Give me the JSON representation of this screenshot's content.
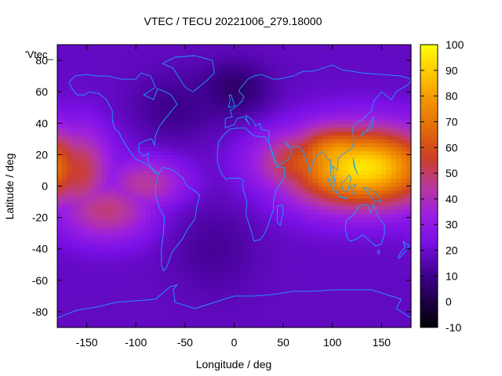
{
  "chart_data": {
    "type": "heatmap",
    "title": "VTEC / TECU 20221006_279.18000",
    "xlabel": "Longitude / deg",
    "ylabel": "Latitude / deg",
    "key_label": "'Vtec_",
    "xlim": [
      -180,
      180
    ],
    "ylim": [
      -90,
      90
    ],
    "x_ticks": [
      -150,
      -100,
      -50,
      0,
      50,
      100,
      150
    ],
    "y_ticks": [
      -80,
      -60,
      -40,
      -20,
      0,
      20,
      40,
      60,
      80
    ],
    "colorbar": {
      "range": [
        -10,
        100
      ],
      "ticks": [
        -10,
        0,
        10,
        20,
        30,
        40,
        50,
        60,
        70,
        80,
        90,
        100
      ],
      "palette": "black-purple-red-orange-yellow"
    },
    "grid": false,
    "field_features": [
      {
        "lon": 130,
        "lat": 12,
        "value": 95,
        "lon_width": 55,
        "lat_width": 18
      },
      {
        "lon": 110,
        "lat": 18,
        "value": 85,
        "lon_width": 40,
        "lat_width": 15
      },
      {
        "lon": 80,
        "lat": 15,
        "value": 65,
        "lon_width": 40,
        "lat_width": 15
      },
      {
        "lon": 160,
        "lat": 5,
        "value": 60,
        "lon_width": 40,
        "lat_width": 15
      },
      {
        "lon": -160,
        "lat": 10,
        "value": 55,
        "lon_width": 25,
        "lat_width": 20
      },
      {
        "lon": -130,
        "lat": -15,
        "value": 48,
        "lon_width": 35,
        "lat_width": 14
      },
      {
        "lon": -90,
        "lat": 2,
        "value": 45,
        "lon_width": 30,
        "lat_width": 12
      },
      {
        "lon": 40,
        "lat": 5,
        "value": 20,
        "lon_width": 40,
        "lat_width": 25
      }
    ],
    "field_lows": [
      {
        "lon": 0,
        "lat": 62,
        "value": 5,
        "lon_width": 25,
        "lat_width": 12
      },
      {
        "lon": -60,
        "lat": 50,
        "value": 10,
        "lon_width": 30,
        "lat_width": 15
      },
      {
        "lon": -20,
        "lat": -40,
        "value": 12,
        "lon_width": 30,
        "lat_width": 20
      }
    ],
    "field_baseline": 18
  },
  "colors": {
    "coastline": "#1a9fff",
    "frame": "#000000"
  }
}
